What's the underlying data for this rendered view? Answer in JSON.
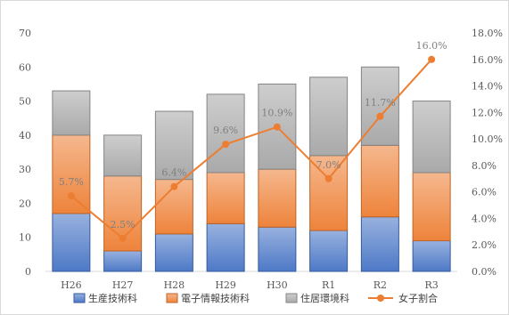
{
  "chart_data": {
    "type": "bar",
    "categories": [
      "H26",
      "H27",
      "H28",
      "H29",
      "H30",
      "R1",
      "R2",
      "R3"
    ],
    "series": [
      {
        "name": "生産技術科",
        "type": "bar",
        "values": [
          17,
          6,
          11,
          14,
          13,
          12,
          16,
          9
        ],
        "color": "#4472c4"
      },
      {
        "name": "電子情報技術科",
        "type": "bar",
        "values": [
          23,
          22,
          16,
          15,
          17,
          22,
          21,
          20
        ],
        "color": "#ed7d31"
      },
      {
        "name": "住居環境科",
        "type": "bar",
        "values": [
          13,
          12,
          20,
          23,
          25,
          23,
          23,
          21
        ],
        "color": "#a5a5a5"
      },
      {
        "name": "女子割合",
        "type": "line",
        "axis": "right",
        "values": [
          5.7,
          2.5,
          6.4,
          9.6,
          10.9,
          7.0,
          11.7,
          16.0
        ],
        "labels": [
          "5.7%",
          "2.5%",
          "6.4%",
          "9.6%",
          "10.9%",
          "7.0%",
          "11.7%",
          "16.0%"
        ],
        "color": "#ed7d31"
      }
    ],
    "ylim": [
      0,
      70
    ],
    "y_ticks": [
      "0",
      "10",
      "20",
      "30",
      "40",
      "50",
      "60",
      "70"
    ],
    "y2lim": [
      0,
      18
    ],
    "y2_ticks": [
      "0.0%",
      "2.0%",
      "4.0%",
      "6.0%",
      "8.0%",
      "10.0%",
      "12.0%",
      "14.0%",
      "16.0%",
      "18.0%"
    ],
    "stacked": true,
    "grid": false,
    "legend_position": "bottom"
  }
}
